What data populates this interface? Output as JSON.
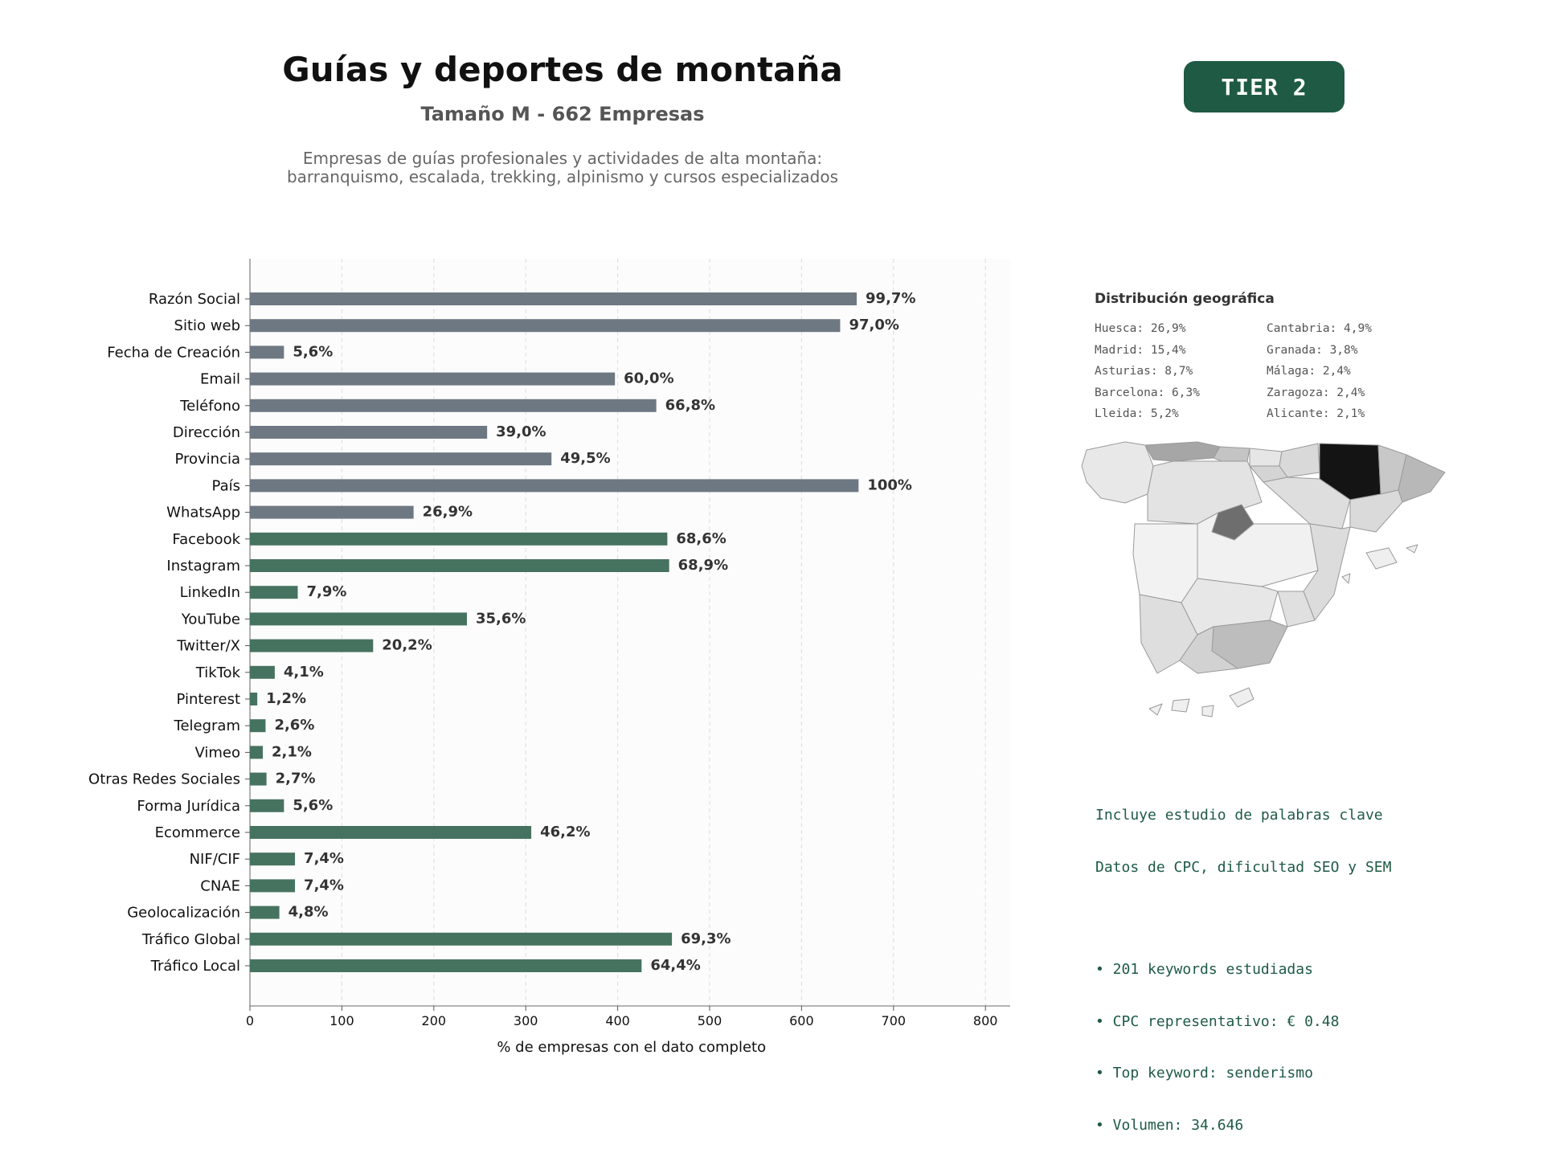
{
  "header": {
    "title": "Guías y deportes de montaña",
    "subtitle": "Tamaño M - 662 Empresas",
    "description_line1": "Empresas de guías profesionales y actividades de alta montaña:",
    "description_line2": "barranquismo, escalada, trekking, alpinismo y cursos especializados",
    "tier_badge": "TIER 2"
  },
  "colors": {
    "gray_bar": "#6e7883",
    "green_bar": "#46735f",
    "tier_badge_bg": "#1e5a44",
    "keywords_text": "#1e5a44"
  },
  "chart_data": {
    "type": "bar",
    "orientation": "horizontal",
    "xlabel": "% de empresas con el dato completo",
    "ylabel": "",
    "xlim": [
      0,
      830
    ],
    "xticks": [
      0,
      100,
      200,
      300,
      400,
      500,
      600,
      700,
      800
    ],
    "grid": "vertical dashed",
    "categories": [
      "Razón Social",
      "Sitio web",
      "Fecha de Creación",
      "Email",
      "Teléfono",
      "Dirección",
      "Provincia",
      "País",
      "WhatsApp",
      "Facebook",
      "Instagram",
      "LinkedIn",
      "YouTube",
      "Twitter/X",
      "TikTok",
      "Pinterest",
      "Telegram",
      "Vimeo",
      "Otras Redes Sociales",
      "Forma Jurídica",
      "Ecommerce",
      "NIF/CIF",
      "CNAE",
      "Geolocalización",
      "Tráfico Global",
      "Tráfico Local"
    ],
    "values": [
      660,
      642,
      37,
      397,
      442,
      258,
      328,
      662,
      178,
      454,
      456,
      52,
      236,
      134,
      27,
      8,
      17,
      14,
      18,
      37,
      306,
      49,
      49,
      32,
      459,
      426
    ],
    "labels": [
      "99,7%",
      "97,0%",
      "5,6%",
      "60,0%",
      "66,8%",
      "39,0%",
      "49,5%",
      "100%",
      "26,9%",
      "68,6%",
      "68,9%",
      "7,9%",
      "35,6%",
      "20,2%",
      "4,1%",
      "1,2%",
      "2,6%",
      "2,1%",
      "2,7%",
      "5,6%",
      "46,2%",
      "7,4%",
      "7,4%",
      "4,8%",
      "69,3%",
      "64,4%"
    ],
    "bar_groups": [
      "gray",
      "gray",
      "gray",
      "gray",
      "gray",
      "gray",
      "gray",
      "gray",
      "gray",
      "green",
      "green",
      "green",
      "green",
      "green",
      "green",
      "green",
      "green",
      "green",
      "green",
      "green",
      "green",
      "green",
      "green",
      "green",
      "green",
      "green"
    ]
  },
  "geo": {
    "title": "Distribución geográfica",
    "items": [
      "Huesca: 26,9%",
      "Cantabria: 4,9%",
      "Madrid: 15,4%",
      "Granada: 3,8%",
      "Asturias: 8,7%",
      "Málaga: 2,4%",
      "Barcelona: 6,3%",
      "Zaragoza: 2,4%",
      "Lleida: 5,2%",
      "Alicante: 2,1%"
    ]
  },
  "keywords": {
    "line1": "Incluye estudio de palabras clave",
    "line2": "Datos de CPC, dificultad SEO y SEM",
    "bullet1": "• 201 keywords estudiadas",
    "bullet2": "• CPC representativo: € 0.48",
    "bullet3": "• Top keyword: senderismo",
    "bullet4": "• Volumen: 34.646"
  }
}
